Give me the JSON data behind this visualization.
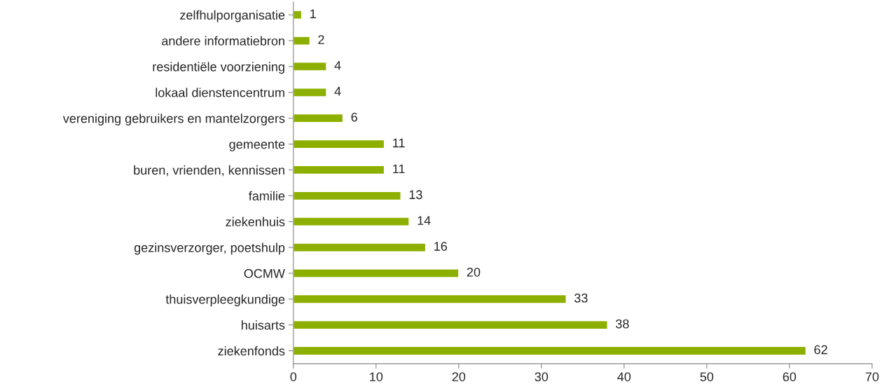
{
  "chart_data": {
    "type": "bar",
    "orientation": "horizontal",
    "categories": [
      "zelfhulporganisatie",
      "andere informatiebron",
      "residentiële voorziening",
      "lokaal dienstencentrum",
      "vereniging gebruikers en mantelzorgers",
      "gemeente",
      "buren, vrienden, kennissen",
      "familie",
      "ziekenhuis",
      "gezinsverzorger, poetshulp",
      "OCMW",
      "thuisverpleegkundige",
      "huisarts",
      "ziekenfonds"
    ],
    "values": [
      1,
      2,
      4,
      4,
      6,
      11,
      11,
      13,
      14,
      16,
      20,
      33,
      38,
      62
    ],
    "color": "#8db000",
    "xlim": [
      0,
      70
    ],
    "xticks": [
      0,
      10,
      20,
      30,
      40,
      50,
      60,
      70
    ],
    "data_labels": true,
    "grid": false,
    "legend": false
  }
}
